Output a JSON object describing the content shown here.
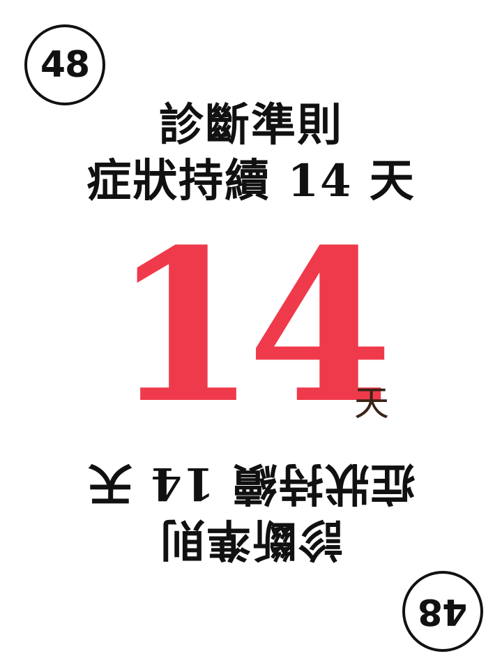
{
  "card": {
    "number": "48",
    "title": "診斷準則",
    "duration_line": "症狀持續 14 天",
    "big_value": "14",
    "big_unit": "天",
    "accent_color": "#ef3a4c",
    "unit_color": "#3a2418"
  }
}
